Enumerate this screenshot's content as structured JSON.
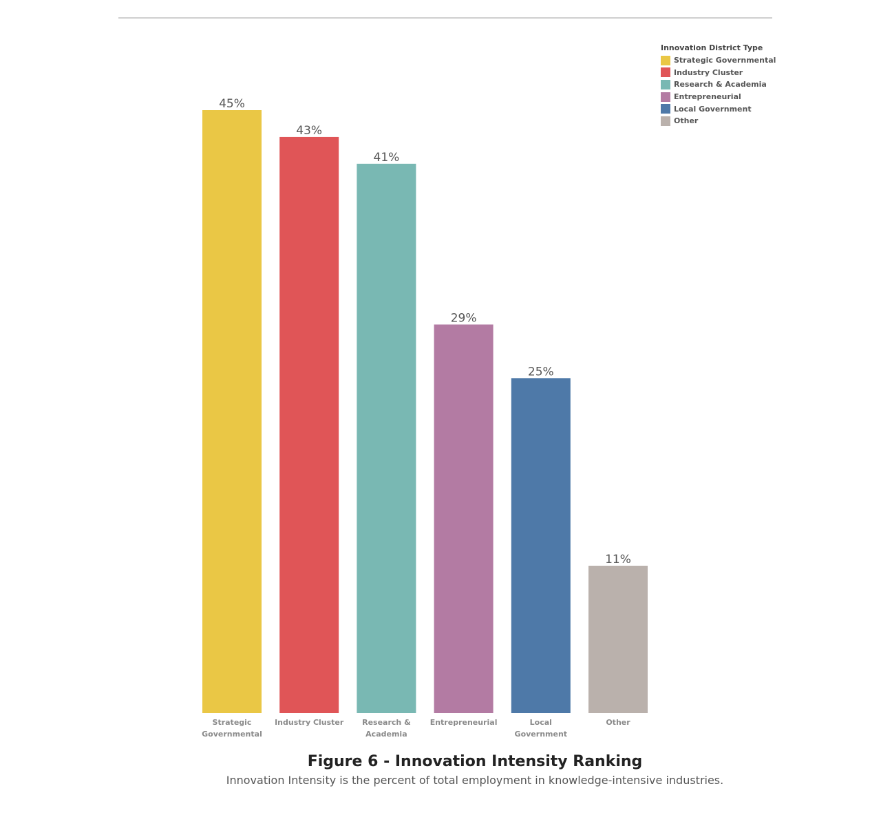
{
  "chart_data": {
    "type": "bar",
    "title": "Figure 6 - Innovation Intensity Ranking",
    "subtitle": "Innovation Intensity is the percent of total employment in knowledge-intensive industries.",
    "categories": [
      [
        "Strategic",
        "Governmental"
      ],
      [
        "Industry Cluster"
      ],
      [
        "Research &",
        "Academia"
      ],
      [
        "Entrepreneurial"
      ],
      [
        "Local",
        "Government"
      ],
      [
        "Other"
      ]
    ],
    "values": [
      45,
      43,
      41,
      29,
      25,
      11
    ],
    "value_labels": [
      "45%",
      "43%",
      "41%",
      "29%",
      "25%",
      "11%"
    ],
    "colors": [
      "#EAC745",
      "#E05557",
      "#79B8B3",
      "#B37BA3",
      "#4E79A8",
      "#BAB1AC"
    ],
    "ylim": [
      0,
      45
    ],
    "grid": false,
    "legend": {
      "title": "Innovation District Type",
      "placement": "top-right",
      "entries": [
        {
          "label": "Strategic Governmental",
          "color": "#EAC745"
        },
        {
          "label": "Industry Cluster",
          "color": "#E05557"
        },
        {
          "label": "Research & Academia",
          "color": "#79B8B3"
        },
        {
          "label": "Entrepreneurial",
          "color": "#B37BA3"
        },
        {
          "label": "Local Government",
          "color": "#4E79A8"
        },
        {
          "label": "Other",
          "color": "#BAB1AC"
        }
      ]
    }
  }
}
